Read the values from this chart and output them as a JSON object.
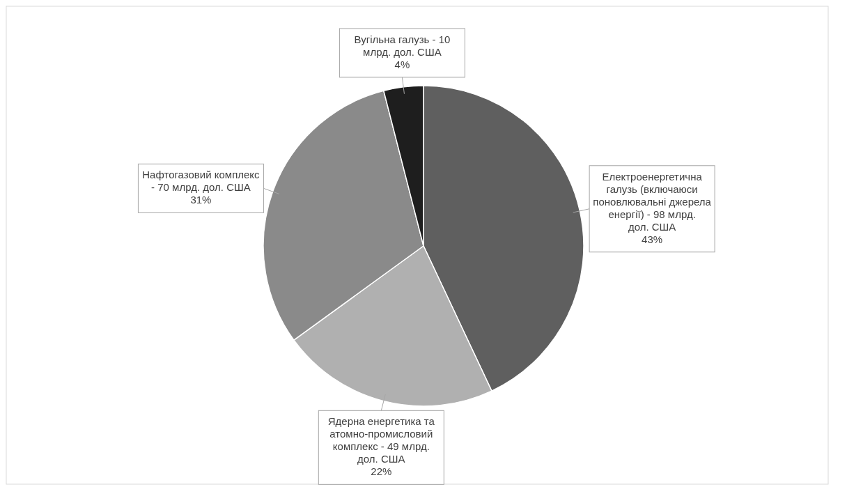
{
  "chart_data": {
    "type": "pie",
    "categories": [
      "Електроенергетична галузь (включаюси поновлювальні джерела енергії) - 98 млрд. дол. США",
      "Ядерна енергетика та атомно-промисловий комплекс - 49 млрд. дол. США",
      "Нафтогазовий комплекс - 70 млрд. дол. США",
      "Вугільна галузь - 10 млрд. дол. США"
    ],
    "values": [
      43,
      22,
      31,
      4
    ],
    "value_labels": [
      "43%",
      "22%",
      "31%",
      "4%"
    ],
    "colors": [
      "#5f5f5f",
      "#b0b0b0",
      "#8a8a8a",
      "#1e1e1e"
    ]
  }
}
